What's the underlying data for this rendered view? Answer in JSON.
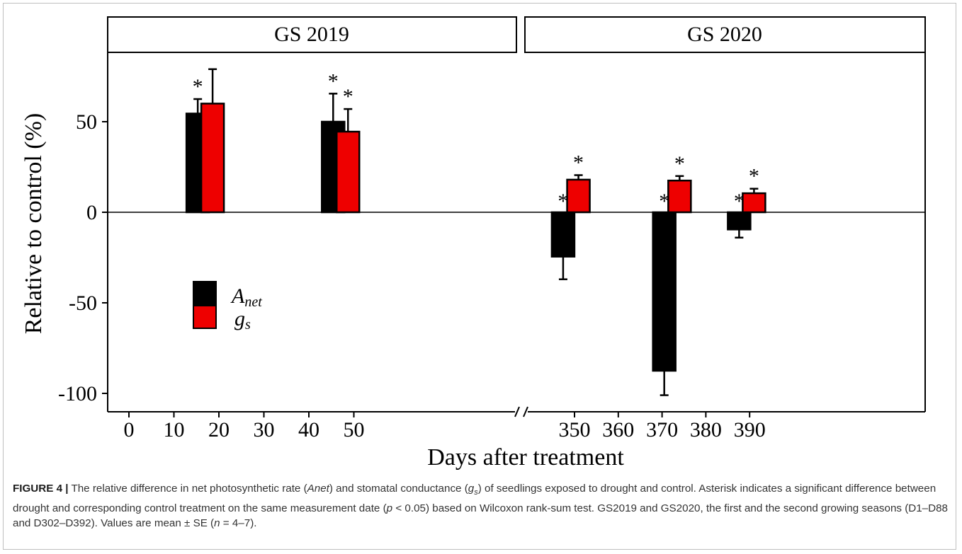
{
  "figure": {
    "label": "FIGURE 4 |",
    "caption": {
      "p1": " The relative difference in net photosynthetic rate (",
      "anet": "Anet",
      "p2": ") and stomatal conductance (",
      "g": "g",
      "gsub": "s",
      "p3": ") of seedlings exposed to drought and control. Asterisk indicates a significant difference between drought and corresponding control treatment on the same measurement date (",
      "p": "p",
      "p4": " < 0.05) based on Wilcoxon rank-sum test. GS2019 and GS2020, the first and the second growing seasons (D1–D88 and D302–D392). Values are mean ± SE (",
      "n": "n",
      "p5": " = 4–7)."
    }
  },
  "colors": {
    "anet": "#000000",
    "gs": "#ee0000",
    "axis": "#000000"
  },
  "chart_data": {
    "type": "bar",
    "xlabel": "Days after treatment",
    "ylabel": "Relative to control (%)",
    "ylim": [
      -110,
      90
    ],
    "yticks": [
      -100,
      -50,
      0,
      50
    ],
    "grid": false,
    "legend_position": "left-middle",
    "panels": [
      {
        "label": "GS 2019",
        "xlim": [
          -4,
          53
        ],
        "xticks": [
          0,
          10,
          20,
          30,
          40,
          50
        ]
      },
      {
        "label": "GS 2020",
        "xlim": [
          340,
          395
        ],
        "xticks": [
          350,
          360,
          370,
          380,
          390
        ]
      }
    ],
    "axis_break": "between 50 and 350",
    "series": [
      {
        "name": "Anet",
        "name_main": "A",
        "name_sub": "net",
        "color": "#000000",
        "points": [
          {
            "x": 15.3,
            "y": 54.5,
            "se": 8.0,
            "sig": true
          },
          {
            "x": 45.4,
            "y": 50.0,
            "se": 15.5,
            "sig": true
          },
          {
            "x": 347.4,
            "y": -24.5,
            "se": 12.5,
            "sig": true
          },
          {
            "x": 370.5,
            "y": -87.5,
            "se": 13.5,
            "sig": true
          },
          {
            "x": 387.6,
            "y": -9.5,
            "se": 4.5,
            "sig": true
          }
        ]
      },
      {
        "name": "gs",
        "name_main": "g",
        "name_sub": "s",
        "color": "#ee0000",
        "points": [
          {
            "x": 18.6,
            "y": 60.0,
            "se": 19.0,
            "sig": false
          },
          {
            "x": 48.7,
            "y": 44.5,
            "se": 12.5,
            "sig": true
          },
          {
            "x": 350.9,
            "y": 18.0,
            "se": 2.5,
            "sig": true
          },
          {
            "x": 374.0,
            "y": 17.5,
            "se": 2.5,
            "sig": true
          },
          {
            "x": 391.0,
            "y": 10.5,
            "se": 2.5,
            "sig": true
          }
        ]
      }
    ],
    "significance_marker": "*"
  }
}
